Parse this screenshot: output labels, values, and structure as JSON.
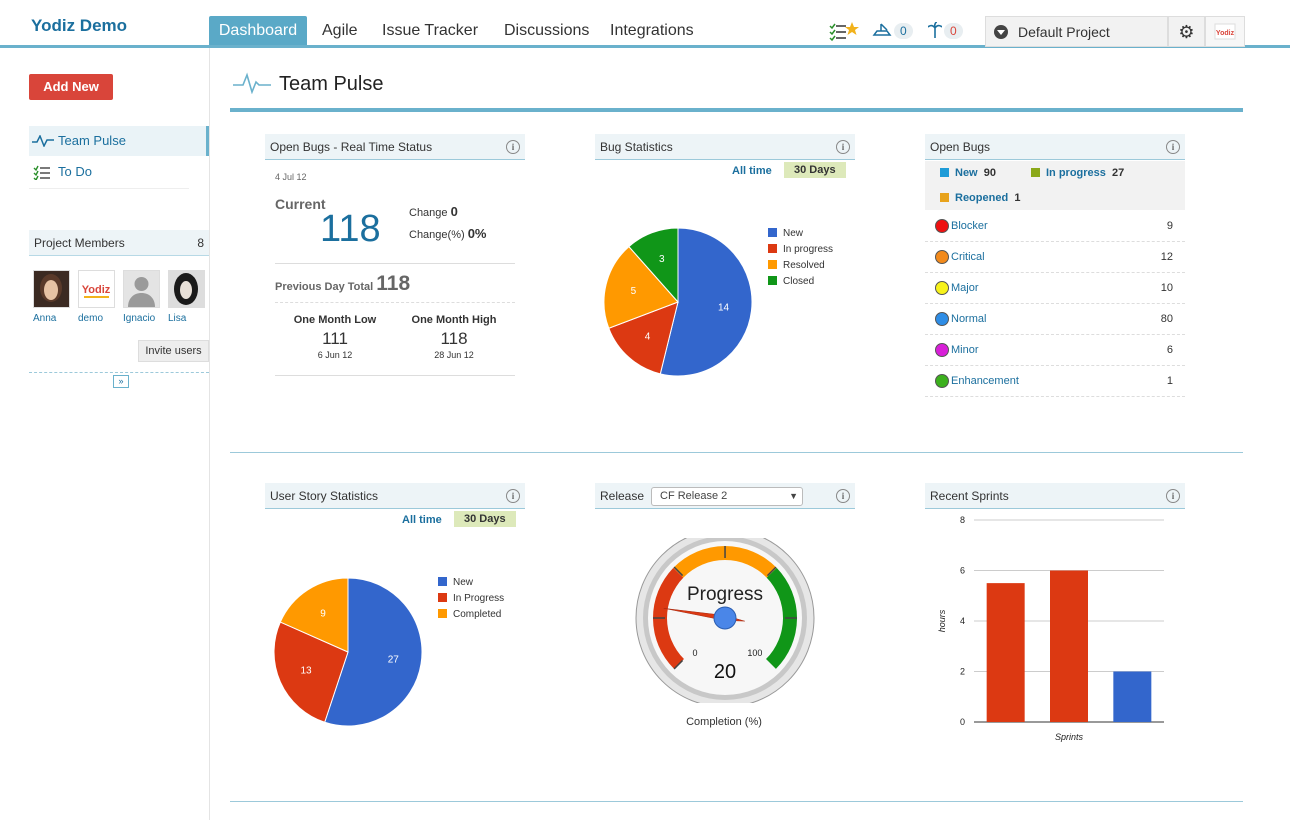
{
  "app": {
    "brand": "Yodiz Demo"
  },
  "nav": {
    "dashboard": "Dashboard",
    "agile": "Agile",
    "issue_tracker": "Issue Tracker",
    "discussions": "Discussions",
    "integrations": "Integrations"
  },
  "header": {
    "count_a": "0",
    "count_b": "0",
    "project": "Default Project"
  },
  "sidebar": {
    "add_new": "Add New",
    "items": [
      {
        "label": "Team Pulse"
      },
      {
        "label": "To Do"
      }
    ],
    "members_title": "Project Members",
    "members_count": "8",
    "members": [
      {
        "name": "Anna"
      },
      {
        "name": "demo"
      },
      {
        "name": "Ignacio"
      },
      {
        "name": "Lisa"
      }
    ],
    "invite": "Invite users"
  },
  "page": {
    "title": "Team Pulse"
  },
  "open_bugs_rt": {
    "title": "Open Bugs - Real Time Status",
    "date": "4 Jul 12",
    "current_label": "Current",
    "current": "118",
    "change_label": "Change",
    "change": "0",
    "change_pct_label": "Change(%)",
    "change_pct": "0%",
    "prev_label": "Previous Day Total",
    "prev": "118",
    "low_label": "One Month Low",
    "low": "111",
    "low_date": "6 Jun 12",
    "high_label": "One Month High",
    "high": "118",
    "high_date": "28 Jun 12"
  },
  "bug_stats": {
    "title": "Bug Statistics",
    "all_time": "All time",
    "days30": "30 Days",
    "chart_data": {
      "type": "pie",
      "categories": [
        "New",
        "In progress",
        "Resolved",
        "Closed"
      ],
      "values": [
        14,
        4,
        5,
        3
      ],
      "colors": [
        "#3366cc",
        "#dc3912",
        "#ff9900",
        "#109618"
      ],
      "legend": "right"
    }
  },
  "open_bugs": {
    "title": "Open Bugs",
    "status": [
      {
        "label": "New",
        "value": "90",
        "color": "#1e9bd7"
      },
      {
        "label": "In progress",
        "value": "27",
        "color": "#8aa81a"
      },
      {
        "label": "Reopened",
        "value": "1",
        "color": "#e8a31c"
      }
    ],
    "severity": [
      {
        "label": "Blocker",
        "value": "9",
        "color": "#ee1111"
      },
      {
        "label": "Critical",
        "value": "12",
        "color": "#f28a1c"
      },
      {
        "label": "Major",
        "value": "10",
        "color": "#f7f21b"
      },
      {
        "label": "Normal",
        "value": "80",
        "color": "#2e8de6"
      },
      {
        "label": "Minor",
        "value": "6",
        "color": "#d81fd8"
      },
      {
        "label": "Enhancement",
        "value": "1",
        "color": "#3cb01d"
      }
    ]
  },
  "story_stats": {
    "title": "User Story Statistics",
    "all_time": "All time",
    "days30": "30 Days",
    "chart_data": {
      "type": "pie",
      "categories": [
        "New",
        "In Progress",
        "Completed"
      ],
      "values": [
        27,
        13,
        9
      ],
      "colors": [
        "#3366cc",
        "#dc3912",
        "#ff9900"
      ],
      "legend": "right"
    }
  },
  "release": {
    "title": "Release",
    "selected": "CF Release 2",
    "gauge_label": "Progress",
    "min_label": "0",
    "max_label": "100",
    "value": 20,
    "caption": "Completion (%)"
  },
  "sprints": {
    "title": "Recent Sprints",
    "chart_data": {
      "type": "bar",
      "categories": [
        "",
        "",
        ""
      ],
      "values": [
        5.5,
        6,
        2
      ],
      "colors": [
        "#dc3912",
        "#dc3912",
        "#3366cc"
      ],
      "ylim": [
        0,
        8
      ],
      "yticks": [
        "0",
        "2",
        "4",
        "6",
        "8"
      ],
      "xlabel": "Sprints",
      "ylabel": "hours",
      "grid": true
    }
  }
}
